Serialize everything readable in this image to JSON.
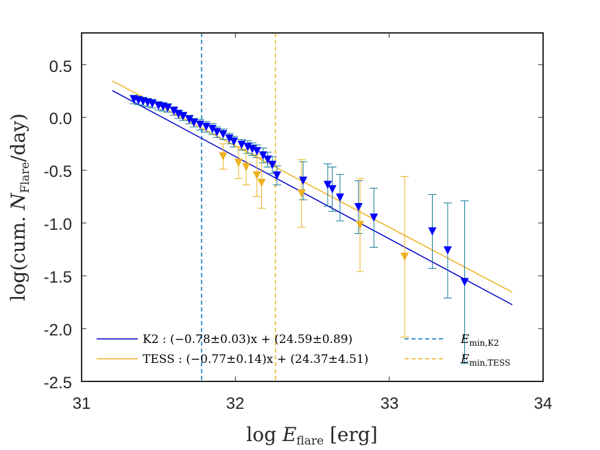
{
  "chart_data": {
    "type": "scatter",
    "title": "",
    "xlabel": "log E_flare [erg]",
    "ylabel": "log(cum. N_Flare/day)",
    "xlim": [
      31,
      34
    ],
    "ylim": [
      -2.5,
      0.8
    ],
    "xticks": [
      31,
      32,
      33,
      34
    ],
    "yticks": [
      0.5,
      0.0,
      -0.5,
      -1.0,
      -1.5,
      -2.0,
      -2.5
    ],
    "xtick_labels": [
      "31",
      "32",
      "33",
      "34"
    ],
    "ytick_labels": [
      "0.5",
      "0.0",
      "-0.5",
      "-1.0",
      "-1.5",
      "-2.0",
      "-2.5"
    ],
    "xlabel_parts": {
      "main": "log ",
      "var": "E",
      "sub": "flare",
      "unit": " [erg]"
    },
    "ylabel_parts": {
      "pre": "log(cum. ",
      "var": "N",
      "sub": "Flare",
      "post": "/day)"
    },
    "grid": false,
    "legend_position": "bottom",
    "colors": {
      "k2": "#0000ff",
      "k2_err": "#117799",
      "k2_line": "#0000cc",
      "tess": "#edb120",
      "tess_line": "#edb120",
      "kvline": "#0072bd",
      "tvline": "#edb120"
    },
    "series": [
      {
        "name": "K2",
        "marker": "down-triangle",
        "fit": {
          "label": "K2 : (−0.78±0.03)x + (24.59±0.89)",
          "slope": -0.78,
          "intercept": 24.59,
          "x_range": [
            31.2,
            33.8
          ]
        },
        "points": [
          [
            31.34,
            0.17,
            0.04
          ],
          [
            31.37,
            0.16,
            0.04
          ],
          [
            31.4,
            0.15,
            0.04
          ],
          [
            31.43,
            0.14,
            0.04
          ],
          [
            31.46,
            0.13,
            0.04
          ],
          [
            31.5,
            0.11,
            0.04
          ],
          [
            31.53,
            0.1,
            0.04
          ],
          [
            31.56,
            0.09,
            0.04
          ],
          [
            31.6,
            0.06,
            0.04
          ],
          [
            31.63,
            0.03,
            0.04
          ],
          [
            31.66,
            0.01,
            0.04
          ],
          [
            31.7,
            -0.02,
            0.04
          ],
          [
            31.73,
            -0.05,
            0.04
          ],
          [
            31.77,
            -0.07,
            0.05
          ],
          [
            31.81,
            -0.09,
            0.05
          ],
          [
            31.85,
            -0.11,
            0.05
          ],
          [
            31.88,
            -0.14,
            0.05
          ],
          [
            31.92,
            -0.16,
            0.05
          ],
          [
            31.96,
            -0.2,
            0.05
          ],
          [
            31.99,
            -0.23,
            0.05
          ],
          [
            32.04,
            -0.26,
            0.05
          ],
          [
            32.08,
            -0.28,
            0.06
          ],
          [
            32.11,
            -0.3,
            0.06
          ],
          [
            32.14,
            -0.32,
            0.06
          ],
          [
            32.18,
            -0.36,
            0.07
          ],
          [
            32.21,
            -0.4,
            0.07
          ],
          [
            32.24,
            -0.45,
            0.08
          ],
          [
            32.27,
            -0.55,
            0.09
          ],
          [
            32.44,
            -0.6,
            0.18
          ],
          [
            32.6,
            -0.64,
            0.2
          ],
          [
            32.63,
            -0.68,
            0.21
          ],
          [
            32.68,
            -0.76,
            0.22
          ],
          [
            32.8,
            -0.85,
            0.25
          ],
          [
            32.9,
            -0.95,
            0.28
          ],
          [
            33.28,
            -1.08,
            0.35
          ],
          [
            33.38,
            -1.26,
            0.45
          ],
          [
            33.49,
            -1.56,
            0.77
          ]
        ]
      },
      {
        "name": "TESS",
        "marker": "down-triangle",
        "fit": {
          "label": "TESS : (−0.77±0.14)x + (24.37±4.51)",
          "slope": -0.77,
          "intercept": 24.37,
          "x_range": [
            31.2,
            33.8
          ]
        },
        "points": [
          [
            31.92,
            -0.37,
            0.12
          ],
          [
            32.02,
            -0.43,
            0.15
          ],
          [
            32.07,
            -0.47,
            0.17
          ],
          [
            32.14,
            -0.55,
            0.2
          ],
          [
            32.17,
            -0.62,
            0.24
          ],
          [
            32.43,
            -0.72,
            0.32
          ],
          [
            32.81,
            -1.02,
            0.44
          ],
          [
            33.1,
            -1.32,
            0.76
          ]
        ]
      }
    ],
    "vlines": [
      {
        "label": "E_min,K2",
        "x": 31.78
      },
      {
        "label": "E_min,TESS",
        "x": 32.26
      }
    ],
    "legend": {
      "k2_fit": "K2 : (−0.78±0.03)x + (24.59±0.89)",
      "tess_fit": "TESS : (−0.77±0.14)x + (24.37±4.51)",
      "emin_k2": {
        "var": "E",
        "sub": "min,K2"
      },
      "emin_tess": {
        "var": "E",
        "sub": "min,TESS"
      }
    }
  }
}
